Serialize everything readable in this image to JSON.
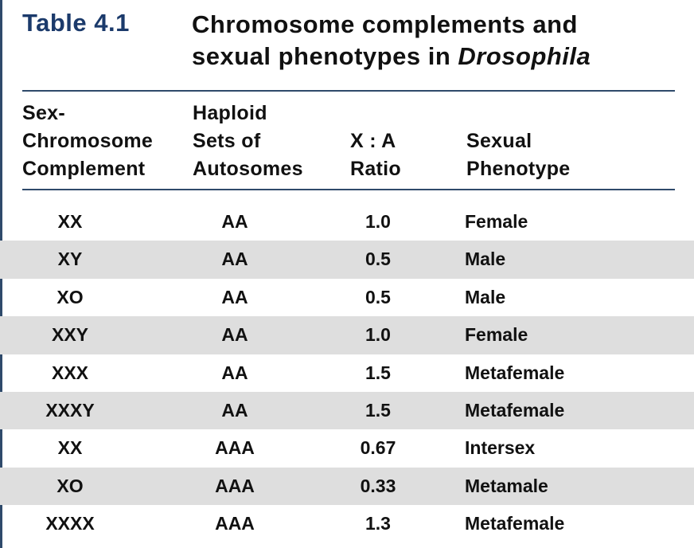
{
  "table": {
    "number": "Table 4.1",
    "title_line1": "Chromosome complements and",
    "title_line2_prefix": "sexual phenotypes in ",
    "title_line2_italic": "Drosophila"
  },
  "headers": [
    [
      "Sex-",
      "Chromosome",
      "Complement"
    ],
    [
      "Haploid",
      "Sets of",
      "Autosomes"
    ],
    [
      "X : A",
      "Ratio"
    ],
    [
      "Sexual",
      "Phenotype"
    ]
  ],
  "rows": [
    [
      "XX",
      "AA",
      "1.0",
      "Female"
    ],
    [
      "XY",
      "AA",
      "0.5",
      "Male"
    ],
    [
      "XO",
      "AA",
      "0.5",
      "Male"
    ],
    [
      "XXY",
      "AA",
      "1.0",
      "Female"
    ],
    [
      "XXX",
      "AA",
      "1.5",
      "Metafemale"
    ],
    [
      "XXXY",
      "AA",
      "1.5",
      "Metafemale"
    ],
    [
      "XX",
      "AAA",
      "0.67",
      "Intersex"
    ],
    [
      "XO",
      "AAA",
      "0.33",
      "Metamale"
    ],
    [
      "XXXX",
      "AAA",
      "1.3",
      "Metafemale"
    ]
  ],
  "colors": {
    "title_blue": "#1b3a6b",
    "rule": "#2f4a6b",
    "row_shade": "#dedede"
  }
}
